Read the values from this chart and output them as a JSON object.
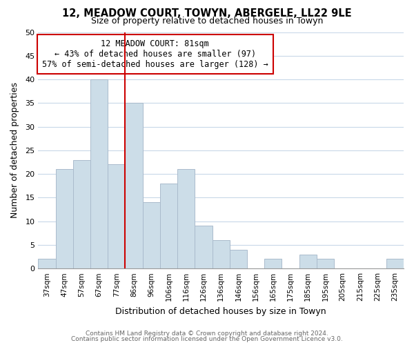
{
  "title": "12, MEADOW COURT, TOWYN, ABERGELE, LL22 9LE",
  "subtitle": "Size of property relative to detached houses in Towyn",
  "xlabel": "Distribution of detached houses by size in Towyn",
  "ylabel": "Number of detached properties",
  "bar_labels": [
    "37sqm",
    "47sqm",
    "57sqm",
    "67sqm",
    "77sqm",
    "86sqm",
    "96sqm",
    "106sqm",
    "116sqm",
    "126sqm",
    "136sqm",
    "146sqm",
    "156sqm",
    "165sqm",
    "175sqm",
    "185sqm",
    "195sqm",
    "205sqm",
    "215sqm",
    "225sqm",
    "235sqm"
  ],
  "bar_heights": [
    2,
    21,
    23,
    40,
    22,
    35,
    14,
    18,
    21,
    9,
    6,
    4,
    0,
    2,
    0,
    3,
    2,
    0,
    0,
    0,
    2
  ],
  "bar_color": "#ccdde8",
  "bar_edge_color": "#aabbcc",
  "vline_x": 4.5,
  "vline_color": "#cc0000",
  "ylim": [
    0,
    50
  ],
  "yticks": [
    0,
    5,
    10,
    15,
    20,
    25,
    30,
    35,
    40,
    45,
    50
  ],
  "annotation_title": "12 MEADOW COURT: 81sqm",
  "annotation_line1": "← 43% of detached houses are smaller (97)",
  "annotation_line2": "57% of semi-detached houses are larger (128) →",
  "annotation_box_color": "#ffffff",
  "annotation_box_edge": "#cc0000",
  "footer1": "Contains HM Land Registry data © Crown copyright and database right 2024.",
  "footer2": "Contains public sector information licensed under the Open Government Licence v3.0.",
  "background_color": "#ffffff",
  "grid_color": "#c8d8e8"
}
